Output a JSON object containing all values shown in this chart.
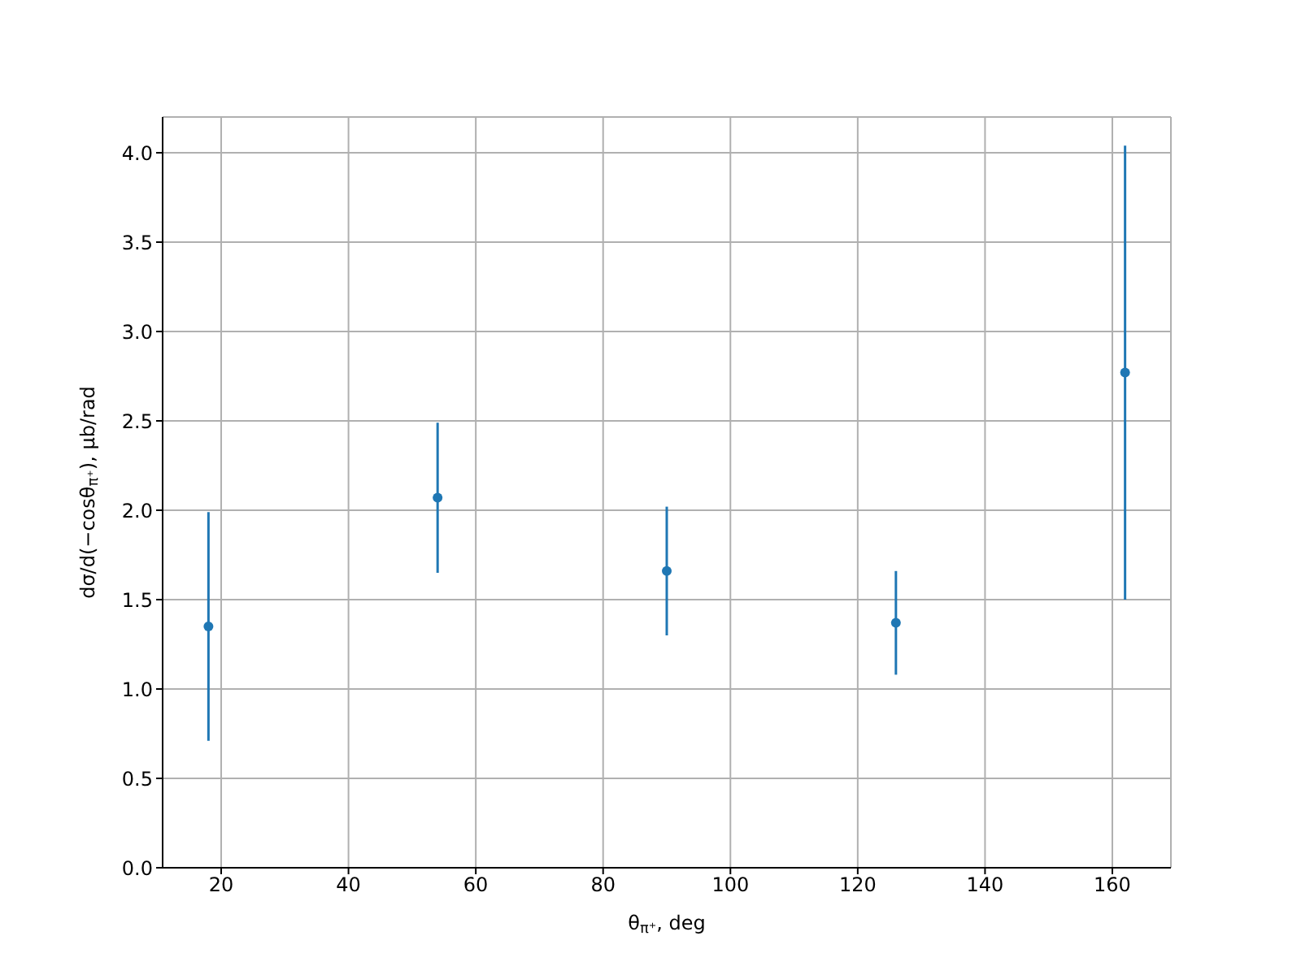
{
  "chart_data": {
    "type": "scatter",
    "xlabel": "θ$_{π⁺}$, deg",
    "ylabel": "dσ/d(−cosθ$_{π⁺}$), μb/rad",
    "x": [
      18,
      54,
      90,
      126,
      162
    ],
    "series": [
      {
        "color": "#1f77b4",
        "values": [
          1.35,
          2.07,
          1.66,
          1.37,
          2.77
        ],
        "errors": [
          0.64,
          0.42,
          0.36,
          0.29,
          1.27
        ]
      }
    ],
    "xlim": [
      10.8,
      169.2
    ],
    "xticks": [
      20,
      40,
      60,
      80,
      100,
      120,
      140,
      160
    ],
    "ylim": [
      0,
      4.2
    ],
    "yticks": [
      {
        "value": 0,
        "label": "0.0"
      },
      {
        "value": 0.5,
        "label": "0.5"
      },
      {
        "value": 1,
        "label": "1.0"
      },
      {
        "value": 1.5,
        "label": "1.5"
      },
      {
        "value": 2,
        "label": "2.0"
      },
      {
        "value": 2.5,
        "label": "2.5"
      },
      {
        "value": 3,
        "label": "3.0"
      },
      {
        "value": 3.5,
        "label": "3.5"
      },
      {
        "value": 4,
        "label": "4.0"
      }
    ],
    "grid": true,
    "marker": "circle"
  }
}
